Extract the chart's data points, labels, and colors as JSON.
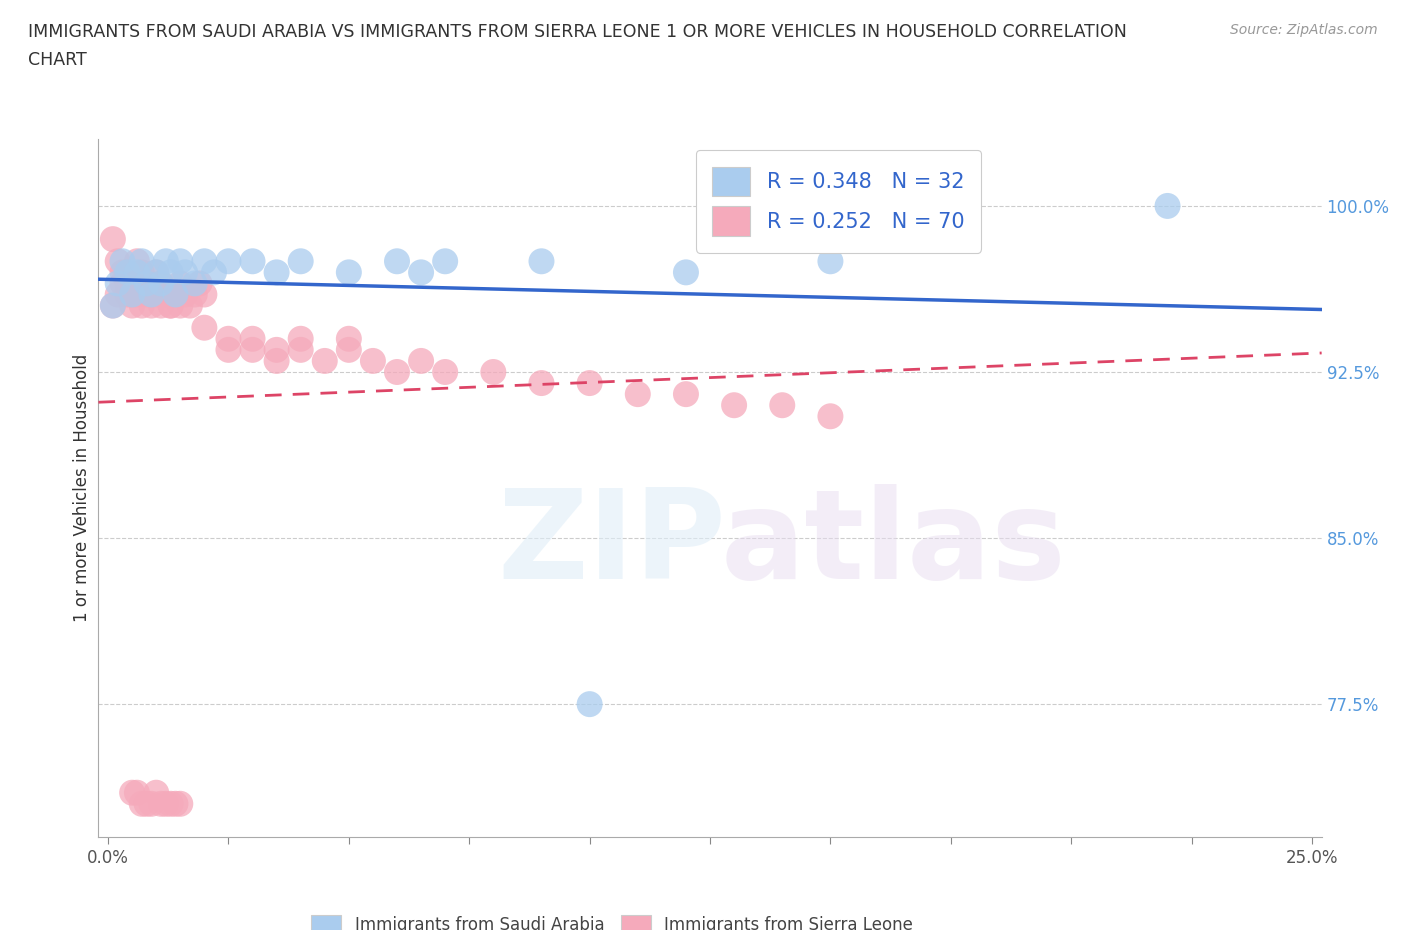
{
  "title_line1": "IMMIGRANTS FROM SAUDI ARABIA VS IMMIGRANTS FROM SIERRA LEONE 1 OR MORE VEHICLES IN HOUSEHOLD CORRELATION",
  "title_line2": "CHART",
  "source_text": "Source: ZipAtlas.com",
  "ylabel": "1 or more Vehicles in Household",
  "saudi_color": "#aaccee",
  "sierra_color": "#f5aabb",
  "saudi_line_color": "#3366cc",
  "sierra_line_color": "#dd4466",
  "legend_saudi_R": "0.348",
  "legend_saudi_N": "32",
  "legend_sierra_R": "0.252",
  "legend_sierra_N": "70",
  "xlim": [
    -0.002,
    0.252
  ],
  "ylim": [
    0.715,
    1.03
  ],
  "yticks": [
    0.775,
    0.85,
    0.925,
    1.0
  ],
  "xtick_positions": [
    0.0,
    0.025,
    0.05,
    0.075,
    0.1,
    0.125,
    0.15,
    0.175,
    0.2,
    0.225,
    0.25
  ],
  "saudi_x": [
    0.001,
    0.002,
    0.003,
    0.004,
    0.005,
    0.006,
    0.007,
    0.008,
    0.009,
    0.01,
    0.011,
    0.012,
    0.013,
    0.014,
    0.015,
    0.016,
    0.018,
    0.02,
    0.022,
    0.025,
    0.03,
    0.035,
    0.04,
    0.05,
    0.06,
    0.065,
    0.07,
    0.09,
    0.1,
    0.12,
    0.15,
    0.22
  ],
  "saudi_y": [
    0.955,
    0.965,
    0.975,
    0.97,
    0.96,
    0.97,
    0.975,
    0.965,
    0.96,
    0.97,
    0.965,
    0.975,
    0.97,
    0.96,
    0.975,
    0.97,
    0.965,
    0.975,
    0.97,
    0.975,
    0.975,
    0.97,
    0.975,
    0.97,
    0.975,
    0.97,
    0.975,
    0.975,
    0.775,
    0.97,
    0.975,
    1.0
  ],
  "sierra_x": [
    0.001,
    0.002,
    0.003,
    0.004,
    0.005,
    0.006,
    0.007,
    0.008,
    0.009,
    0.01,
    0.011,
    0.012,
    0.013,
    0.014,
    0.015,
    0.016,
    0.017,
    0.018,
    0.019,
    0.02,
    0.001,
    0.002,
    0.003,
    0.004,
    0.005,
    0.006,
    0.007,
    0.008,
    0.009,
    0.01,
    0.011,
    0.012,
    0.013,
    0.014,
    0.015,
    0.02,
    0.025,
    0.03,
    0.035,
    0.04,
    0.05,
    0.025,
    0.03,
    0.035,
    0.04,
    0.045,
    0.05,
    0.055,
    0.06,
    0.065,
    0.07,
    0.08,
    0.09,
    0.1,
    0.11,
    0.12,
    0.13,
    0.14,
    0.15,
    0.005,
    0.006,
    0.007,
    0.008,
    0.009,
    0.01,
    0.011,
    0.012,
    0.013,
    0.014,
    0.015
  ],
  "sierra_y": [
    0.985,
    0.975,
    0.97,
    0.965,
    0.96,
    0.975,
    0.97,
    0.965,
    0.96,
    0.97,
    0.965,
    0.96,
    0.955,
    0.96,
    0.965,
    0.96,
    0.955,
    0.96,
    0.965,
    0.96,
    0.955,
    0.96,
    0.965,
    0.96,
    0.955,
    0.96,
    0.955,
    0.96,
    0.955,
    0.96,
    0.955,
    0.96,
    0.955,
    0.96,
    0.955,
    0.945,
    0.94,
    0.94,
    0.935,
    0.94,
    0.94,
    0.935,
    0.935,
    0.93,
    0.935,
    0.93,
    0.935,
    0.93,
    0.925,
    0.93,
    0.925,
    0.925,
    0.92,
    0.92,
    0.915,
    0.915,
    0.91,
    0.91,
    0.905,
    0.735,
    0.735,
    0.73,
    0.73,
    0.73,
    0.735,
    0.73,
    0.73,
    0.73,
    0.73,
    0.73
  ]
}
